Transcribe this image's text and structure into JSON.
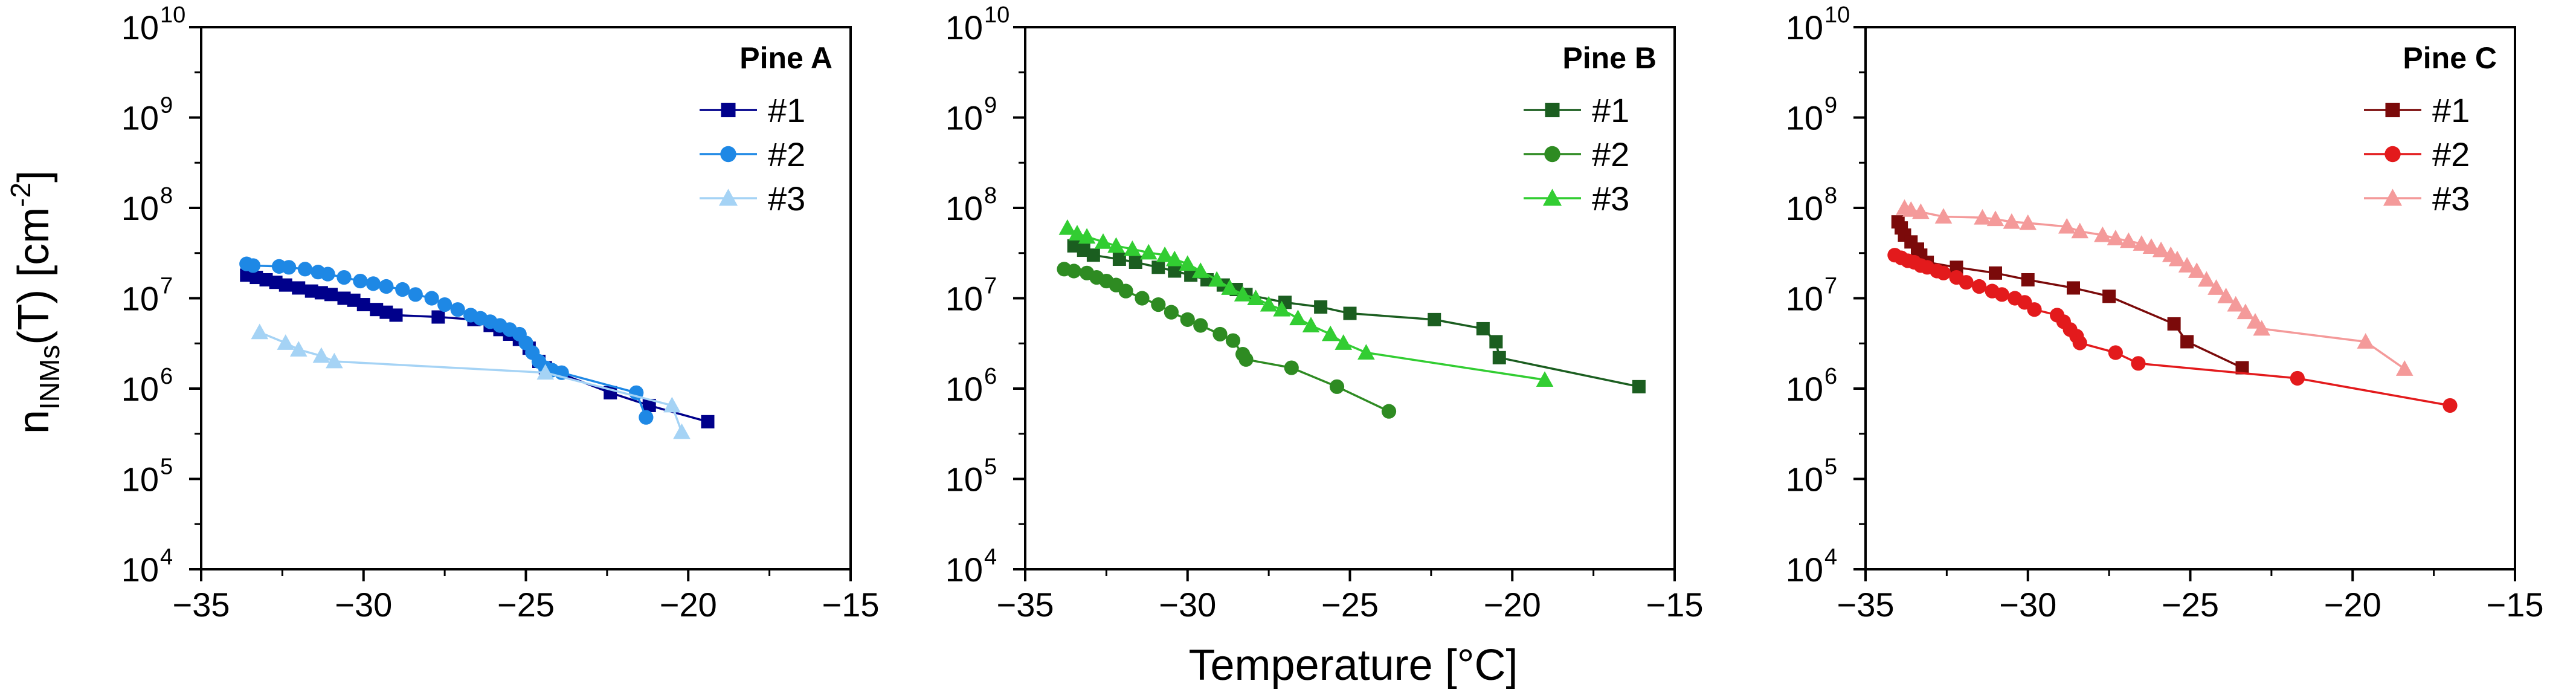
{
  "colors": {
    "pine_a": [
      "#00008B",
      "#1E88E5",
      "#A5D3F5"
    ],
    "pine_b": [
      "#1B5E20",
      "#2E8B22",
      "#32CD32"
    ],
    "pine_c": [
      "#7B0A0A",
      "#E31A1C",
      "#F49A9A"
    ]
  },
  "shared_axes": {
    "x_ticks": [
      "−35",
      "−30",
      "−25",
      "−20",
      "−15"
    ],
    "x_tick_values": [
      -35,
      -30,
      -25,
      -20,
      -15
    ],
    "y_ticks": [
      {
        "base": "10",
        "exp": "4"
      },
      {
        "base": "10",
        "exp": "5"
      },
      {
        "base": "10",
        "exp": "6"
      },
      {
        "base": "10",
        "exp": "7"
      },
      {
        "base": "10",
        "exp": "8"
      },
      {
        "base": "10",
        "exp": "9"
      },
      {
        "base": "10",
        "exp": "10"
      }
    ],
    "xlabel": "Temperature [°C]",
    "ylabel": {
      "main": "n",
      "sub": "INMs",
      "after": "(T) [cm",
      "sup": "-2",
      "close": "]"
    }
  },
  "chart_data": [
    {
      "type": "line",
      "title": "Pine A",
      "xlim": [
        -35,
        -15
      ],
      "ylim": [
        4.0,
        10.0
      ],
      "yscale": "log10",
      "series": [
        {
          "name": "#1",
          "marker": "square",
          "x": [
            -33.6,
            -33.3,
            -33.0,
            -32.7,
            -32.4,
            -32.0,
            -31.6,
            -31.3,
            -31.0,
            -30.6,
            -30.3,
            -30.0,
            -29.6,
            -29.3,
            -29.0,
            -27.7,
            -26.6,
            -26.1,
            -25.8,
            -25.5,
            -25.2,
            -24.9,
            -24.6,
            -24.4,
            -22.4,
            -21.2,
            -19.4
          ],
          "y": [
            18000000.0,
            17000000.0,
            16000000.0,
            15000000.0,
            14000000.0,
            13000000.0,
            12000000.0,
            11500000.0,
            11000000.0,
            10000000.0,
            9500000.0,
            8500000.0,
            7500000.0,
            7000000.0,
            6500000.0,
            6200000.0,
            5800000.0,
            5000000.0,
            4500000.0,
            4000000.0,
            3500000.0,
            2800000.0,
            2000000.0,
            1700000.0,
            900000.0,
            650000.0,
            430000.0
          ]
        },
        {
          "name": "#2",
          "marker": "circle",
          "x": [
            -33.6,
            -33.4,
            -32.6,
            -32.3,
            -31.8,
            -31.4,
            -31.1,
            -30.6,
            -30.1,
            -29.7,
            -29.3,
            -28.8,
            -28.4,
            -27.9,
            -27.5,
            -27.1,
            -26.7,
            -26.4,
            -26.1,
            -25.8,
            -25.5,
            -25.2,
            -25.0,
            -24.8,
            -24.6,
            -24.4,
            -24.2,
            -23.9,
            -21.6,
            -21.3
          ],
          "y": [
            24000000.0,
            23000000.0,
            22500000.0,
            22000000.0,
            21000000.0,
            19500000.0,
            18500000.0,
            17000000.0,
            15500000.0,
            14500000.0,
            13500000.0,
            12500000.0,
            11000000.0,
            10000000.0,
            8500000.0,
            7500000.0,
            6500000.0,
            6000000.0,
            5500000.0,
            5000000.0,
            4500000.0,
            4000000.0,
            3200000.0,
            2500000.0,
            2000000.0,
            1700000.0,
            1600000.0,
            1500000.0,
            900000.0,
            480000.0
          ]
        },
        {
          "name": "#3",
          "marker": "triangle",
          "x": [
            -33.2,
            -32.4,
            -32.0,
            -31.3,
            -30.9,
            -24.4,
            -20.5,
            -20.2
          ],
          "y": [
            4200000.0,
            3200000.0,
            2700000.0,
            2300000.0,
            2000000.0,
            1500000.0,
            650000.0,
            330000.0
          ]
        }
      ]
    },
    {
      "type": "line",
      "title": "Pine B",
      "xlim": [
        -35,
        -15
      ],
      "ylim": [
        4.0,
        10.0
      ],
      "yscale": "log10",
      "series": [
        {
          "name": "#1",
          "marker": "square",
          "x": [
            -33.5,
            -33.2,
            -32.9,
            -32.1,
            -31.6,
            -30.9,
            -30.4,
            -29.9,
            -29.4,
            -28.9,
            -28.5,
            -28.2,
            -27.0,
            -25.9,
            -25.0,
            -22.4,
            -20.9,
            -20.5,
            -20.4,
            -16.1
          ],
          "y": [
            38000000.0,
            34000000.0,
            30000000.0,
            27000000.0,
            25000000.0,
            22000000.0,
            20000000.0,
            18000000.0,
            16000000.0,
            14000000.0,
            12500000.0,
            11000000.0,
            9000000.0,
            8000000.0,
            6800000.0,
            5800000.0,
            4600000.0,
            3300000.0,
            2200000.0,
            1050000.0
          ]
        },
        {
          "name": "#2",
          "marker": "circle",
          "x": [
            -33.8,
            -33.5,
            -33.1,
            -32.8,
            -32.5,
            -32.2,
            -31.9,
            -31.4,
            -30.9,
            -30.5,
            -30.0,
            -29.6,
            -29.0,
            -28.6,
            -28.3,
            -28.2,
            -26.8,
            -25.4,
            -23.8
          ],
          "y": [
            21000000.0,
            20000000.0,
            19000000.0,
            17000000.0,
            15500000.0,
            14000000.0,
            12000000.0,
            10000000.0,
            8500000.0,
            7000000.0,
            5800000.0,
            5000000.0,
            4000000.0,
            3400000.0,
            2400000.0,
            2100000.0,
            1700000.0,
            1050000.0,
            560000.0
          ]
        },
        {
          "name": "#3",
          "marker": "triangle",
          "x": [
            -33.7,
            -33.4,
            -33.1,
            -32.6,
            -32.2,
            -31.7,
            -31.2,
            -30.7,
            -30.4,
            -30.0,
            -29.6,
            -29.1,
            -28.7,
            -28.3,
            -27.9,
            -27.5,
            -27.1,
            -26.6,
            -26.2,
            -25.6,
            -25.2,
            -24.5,
            -19.0
          ],
          "y": [
            60000000.0,
            52000000.0,
            48000000.0,
            42000000.0,
            38000000.0,
            35000000.0,
            32000000.0,
            30000000.0,
            27000000.0,
            24000000.0,
            20000000.0,
            16000000.0,
            13000000.0,
            11000000.0,
            10000000.0,
            8500000.0,
            7500000.0,
            6000000.0,
            5000000.0,
            4000000.0,
            3200000.0,
            2500000.0,
            1250000.0
          ]
        }
      ]
    },
    {
      "type": "line",
      "title": "Pine C",
      "xlim": [
        -35,
        -15
      ],
      "ylim": [
        4.0,
        10.0
      ],
      "yscale": "log10",
      "series": [
        {
          "name": "#1",
          "marker": "square",
          "x": [
            -34.0,
            -33.9,
            -33.8,
            -33.6,
            -33.4,
            -33.3,
            -33.1,
            -32.2,
            -31.0,
            -30.0,
            -28.6,
            -27.5,
            -25.5,
            -25.1,
            -23.4
          ],
          "y": [
            70000000.0,
            60000000.0,
            50000000.0,
            42000000.0,
            35000000.0,
            30000000.0,
            25000000.0,
            22000000.0,
            19000000.0,
            16000000.0,
            13000000.0,
            10500000.0,
            5200000.0,
            3300000.0,
            1700000.0
          ]
        },
        {
          "name": "#2",
          "marker": "circle",
          "x": [
            -34.1,
            -33.9,
            -33.7,
            -33.5,
            -33.3,
            -33.1,
            -32.8,
            -32.6,
            -32.2,
            -31.9,
            -31.5,
            -31.1,
            -30.8,
            -30.4,
            -30.1,
            -29.8,
            -29.1,
            -28.9,
            -28.7,
            -28.5,
            -28.4,
            -27.3,
            -26.6,
            -21.7,
            -17.0
          ],
          "y": [
            30000000.0,
            28000000.0,
            26000000.0,
            25000000.0,
            23000000.0,
            22000000.0,
            20000000.0,
            19000000.0,
            17000000.0,
            15000000.0,
            13500000.0,
            12000000.0,
            11000000.0,
            10000000.0,
            9000000.0,
            7500000.0,
            6500000.0,
            5500000.0,
            4500000.0,
            3800000.0,
            3200000.0,
            2500000.0,
            1900000.0,
            1300000.0,
            650000.0
          ]
        },
        {
          "name": "#3",
          "marker": "triangle",
          "x": [
            -33.8,
            -33.6,
            -33.3,
            -32.6,
            -31.4,
            -31.0,
            -30.5,
            -30.0,
            -28.8,
            -28.4,
            -27.7,
            -27.3,
            -26.9,
            -26.5,
            -26.2,
            -25.9,
            -25.6,
            -25.4,
            -25.1,
            -24.8,
            -24.5,
            -24.2,
            -23.9,
            -23.6,
            -23.3,
            -23.0,
            -22.8,
            -19.6,
            -18.4
          ],
          "y": [
            100000000.0,
            95000000.0,
            90000000.0,
            80000000.0,
            78000000.0,
            75000000.0,
            70000000.0,
            68000000.0,
            62000000.0,
            55000000.0,
            50000000.0,
            46000000.0,
            43000000.0,
            40000000.0,
            37000000.0,
            34000000.0,
            30000000.0,
            27000000.0,
            23000000.0,
            20000000.0,
            16000000.0,
            13000000.0,
            10500000.0,
            8500000.0,
            7000000.0,
            5500000.0,
            4600000.0,
            3300000.0,
            1650000.0
          ]
        }
      ]
    }
  ]
}
